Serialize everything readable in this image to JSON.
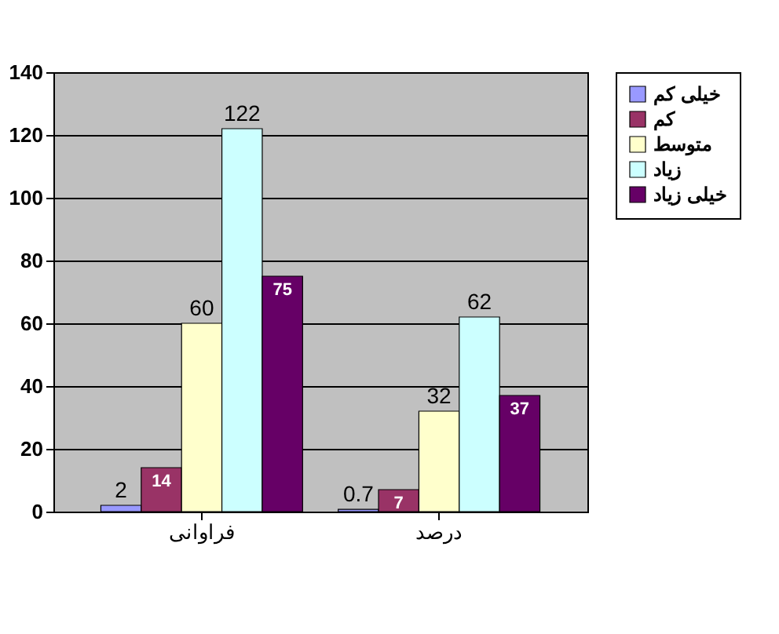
{
  "chart_data": {
    "type": "bar",
    "categories": [
      "فراوانی",
      "درصد"
    ],
    "series": [
      {
        "name": "خیلی کم",
        "color": "#9999ff",
        "values": [
          2,
          0.7
        ]
      },
      {
        "name": "کم",
        "color": "#993366",
        "values": [
          14,
          7
        ]
      },
      {
        "name": "متوسط",
        "color": "#ffffcc",
        "values": [
          60,
          32
        ]
      },
      {
        "name": "زیاد",
        "color": "#ccffff",
        "values": [
          122,
          62
        ]
      },
      {
        "name": "خیلی زیاد",
        "color": "#660066",
        "values": [
          75,
          37
        ]
      }
    ],
    "ylim": [
      0,
      140
    ],
    "yticks": [
      0,
      20,
      40,
      60,
      80,
      100,
      120,
      140
    ],
    "grid": "y",
    "legend": "right",
    "data_labels": true
  }
}
